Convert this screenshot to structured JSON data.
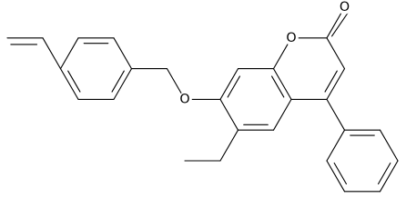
{
  "labels": {
    "carbonyl_oxygen": "O",
    "ring_oxygen": "O",
    "ether_oxygen": "O"
  }
}
